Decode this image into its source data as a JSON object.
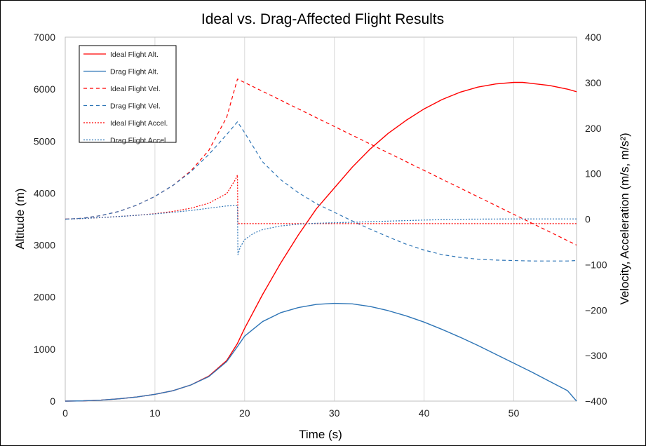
{
  "chart_data": {
    "type": "line",
    "title": "Ideal vs. Drag-Affected Flight Results",
    "xlabel": "Time (s)",
    "ylabel_left": "Altitude (m)",
    "ylabel_right": "Velocity, Acceleration (m/s, m/s²)",
    "xlim": [
      0,
      57
    ],
    "ylim_left": [
      0,
      7000
    ],
    "ylim_right": [
      -400,
      400
    ],
    "x_ticks": [
      "0",
      "10",
      "20",
      "30",
      "40",
      "50"
    ],
    "y_left_ticks": [
      "0",
      "1000",
      "2000",
      "3000",
      "4000",
      "5000",
      "6000",
      "7000"
    ],
    "y_right_ticks": [
      "-400",
      "-300",
      "-200",
      "-100",
      "0",
      "100",
      "200",
      "300",
      "400"
    ],
    "grid": "vertical",
    "legend_position": "top-left",
    "series": [
      {
        "name": "Ideal Flight Alt.",
        "axis": "left",
        "color": "#ff0000",
        "style": "solid",
        "x": [
          0,
          2,
          4,
          6,
          8,
          10,
          12,
          14,
          16,
          18,
          19.2,
          20,
          22,
          24,
          26,
          28,
          30,
          32,
          34,
          36,
          38,
          40,
          42,
          44,
          46,
          48,
          50,
          51,
          52,
          54,
          56,
          57
        ],
        "y": [
          0,
          5,
          20,
          45,
          80,
          130,
          200,
          310,
          480,
          780,
          1110,
          1400,
          2050,
          2650,
          3200,
          3700,
          4100,
          4500,
          4850,
          5150,
          5400,
          5620,
          5800,
          5940,
          6040,
          6100,
          6130,
          6130,
          6110,
          6070,
          6000,
          5950
        ]
      },
      {
        "name": "Drag Flight Alt.",
        "axis": "left",
        "color": "#2e75b6",
        "style": "solid",
        "x": [
          0,
          2,
          4,
          6,
          8,
          10,
          12,
          14,
          16,
          18,
          19.2,
          20,
          22,
          24,
          26,
          28,
          30,
          32,
          34,
          36,
          38,
          40,
          42,
          44,
          46,
          48,
          50,
          52,
          54,
          56,
          57
        ],
        "y": [
          0,
          5,
          20,
          45,
          80,
          130,
          200,
          310,
          470,
          760,
          1050,
          1250,
          1530,
          1700,
          1800,
          1860,
          1880,
          1870,
          1820,
          1740,
          1640,
          1520,
          1380,
          1230,
          1070,
          900,
          730,
          560,
          380,
          200,
          0
        ]
      },
      {
        "name": "Ideal Flight Vel.",
        "axis": "right",
        "color": "#ff0000",
        "style": "dashed",
        "x": [
          0,
          2,
          4,
          6,
          8,
          10,
          12,
          14,
          16,
          18,
          19.2,
          57
        ],
        "y": [
          0,
          2,
          8,
          17,
          31,
          50,
          74,
          106,
          151,
          224,
          308,
          -57
        ]
      },
      {
        "name": "Drag Flight Vel.",
        "axis": "right",
        "color": "#2e75b6",
        "style": "dashed",
        "x": [
          0,
          2,
          4,
          6,
          8,
          10,
          12,
          14,
          16,
          18,
          19.2,
          20,
          22,
          24,
          26,
          28,
          30,
          32,
          34,
          36,
          38,
          40,
          42,
          44,
          46,
          48,
          50,
          52,
          54,
          56,
          57
        ],
        "y": [
          0,
          2,
          8,
          17,
          31,
          50,
          74,
          104,
          142,
          186,
          214,
          190,
          126,
          87,
          58,
          34,
          15,
          -4,
          -22,
          -39,
          -55,
          -68,
          -78,
          -84,
          -88,
          -90,
          -91,
          -92,
          -92,
          -92,
          -91
        ]
      },
      {
        "name": "Ideal Flight Accel.",
        "axis": "right",
        "color": "#ff0000",
        "style": "dotted",
        "x": [
          0,
          2,
          4,
          6,
          8,
          10,
          12,
          14,
          16,
          18,
          19.0,
          19.2,
          19.25,
          57
        ],
        "y": [
          0,
          1.5,
          3.5,
          5.8,
          8.5,
          12,
          17,
          24,
          35,
          56,
          88,
          97,
          -9.8,
          -9.8
        ]
      },
      {
        "name": "Drag Flight Accel.",
        "axis": "right",
        "color": "#2e75b6",
        "style": "dotted",
        "x": [
          0,
          2,
          4,
          6,
          8,
          10,
          12,
          14,
          16,
          18,
          19.2,
          19.25,
          19.5,
          20,
          21,
          22,
          24,
          26,
          28,
          30,
          35,
          40,
          45,
          50,
          57
        ],
        "y": [
          0,
          1.5,
          3.5,
          5.8,
          8.5,
          11.5,
          15,
          19,
          24,
          29,
          30,
          -78,
          -62,
          -45,
          -31,
          -23,
          -15,
          -11,
          -9,
          -8,
          -5,
          -2,
          0,
          0.5,
          0.5
        ]
      }
    ]
  }
}
